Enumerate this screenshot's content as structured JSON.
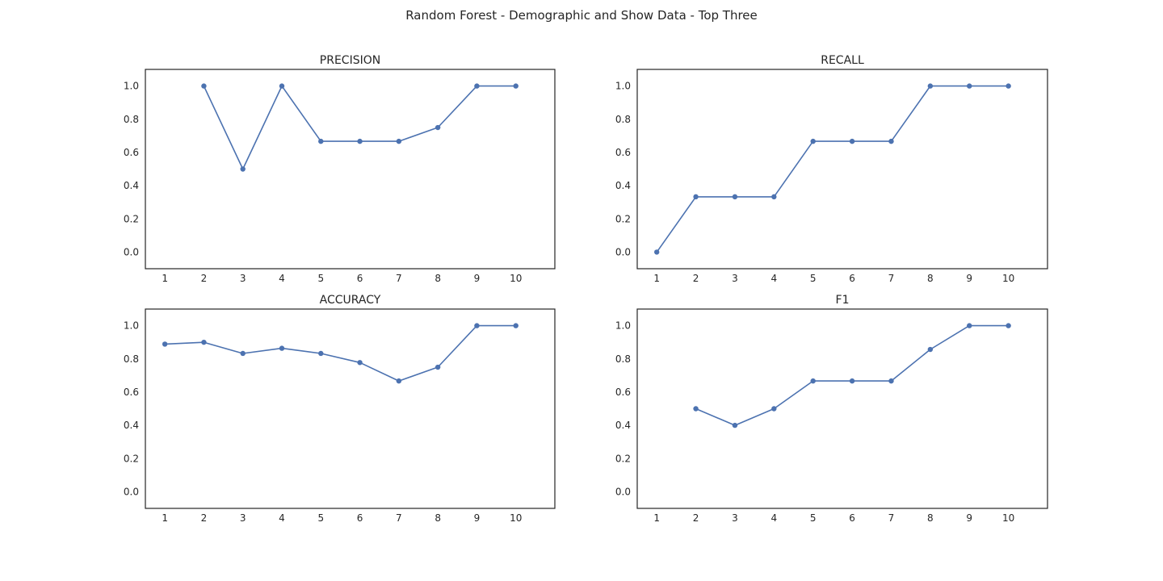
{
  "figure": {
    "title": "Random Forest - Demographic and Show Data - Top Three"
  },
  "style": {
    "line_color": "#4c72b0",
    "frame_color": "#262626",
    "background": "#ffffff"
  },
  "chart_data": [
    {
      "type": "line",
      "title": "PRECISION",
      "xlabel": "",
      "ylabel": "",
      "x": [
        1,
        2,
        3,
        4,
        5,
        6,
        7,
        8,
        9,
        10
      ],
      "series": [
        {
          "values": [
            null,
            1.0,
            0.5,
            1.0,
            0.667,
            0.667,
            0.667,
            0.75,
            1.0,
            1.0
          ]
        }
      ],
      "xticks": [
        "1",
        "2",
        "3",
        "4",
        "5",
        "6",
        "7",
        "8",
        "9",
        "10"
      ],
      "yticks": [
        "0.0",
        "0.2",
        "0.4",
        "0.6",
        "0.8",
        "1.0"
      ],
      "xlim": [
        0.5,
        11.0
      ],
      "ylim": [
        -0.1,
        1.1
      ],
      "grid": false
    },
    {
      "type": "line",
      "title": "RECALL",
      "xlabel": "",
      "ylabel": "",
      "x": [
        1,
        2,
        3,
        4,
        5,
        6,
        7,
        8,
        9,
        10
      ],
      "series": [
        {
          "values": [
            0.0,
            0.333,
            0.333,
            0.333,
            0.667,
            0.667,
            0.667,
            1.0,
            1.0,
            1.0
          ]
        }
      ],
      "xticks": [
        "1",
        "2",
        "3",
        "4",
        "5",
        "6",
        "7",
        "8",
        "9",
        "10"
      ],
      "yticks": [
        "0.0",
        "0.2",
        "0.4",
        "0.6",
        "0.8",
        "1.0"
      ],
      "xlim": [
        0.5,
        11.0
      ],
      "ylim": [
        -0.1,
        1.1
      ],
      "grid": false
    },
    {
      "type": "line",
      "title": "ACCURACY",
      "xlabel": "",
      "ylabel": "",
      "x": [
        1,
        2,
        3,
        4,
        5,
        6,
        7,
        8,
        9,
        10
      ],
      "series": [
        {
          "values": [
            0.889,
            0.9,
            0.833,
            0.864,
            0.833,
            0.778,
            0.667,
            0.75,
            1.0,
            1.0
          ]
        }
      ],
      "xticks": [
        "1",
        "2",
        "3",
        "4",
        "5",
        "6",
        "7",
        "8",
        "9",
        "10"
      ],
      "yticks": [
        "0.0",
        "0.2",
        "0.4",
        "0.6",
        "0.8",
        "1.0"
      ],
      "xlim": [
        0.5,
        11.0
      ],
      "ylim": [
        -0.1,
        1.1
      ],
      "grid": false
    },
    {
      "type": "line",
      "title": "F1",
      "xlabel": "",
      "ylabel": "",
      "x": [
        1,
        2,
        3,
        4,
        5,
        6,
        7,
        8,
        9,
        10
      ],
      "series": [
        {
          "values": [
            null,
            0.5,
            0.4,
            0.5,
            0.667,
            0.667,
            0.667,
            0.857,
            1.0,
            1.0
          ]
        }
      ],
      "xticks": [
        "1",
        "2",
        "3",
        "4",
        "5",
        "6",
        "7",
        "8",
        "9",
        "10"
      ],
      "yticks": [
        "0.0",
        "0.2",
        "0.4",
        "0.6",
        "0.8",
        "1.0"
      ],
      "xlim": [
        0.5,
        11.0
      ],
      "ylim": [
        -0.1,
        1.1
      ],
      "grid": false
    }
  ]
}
